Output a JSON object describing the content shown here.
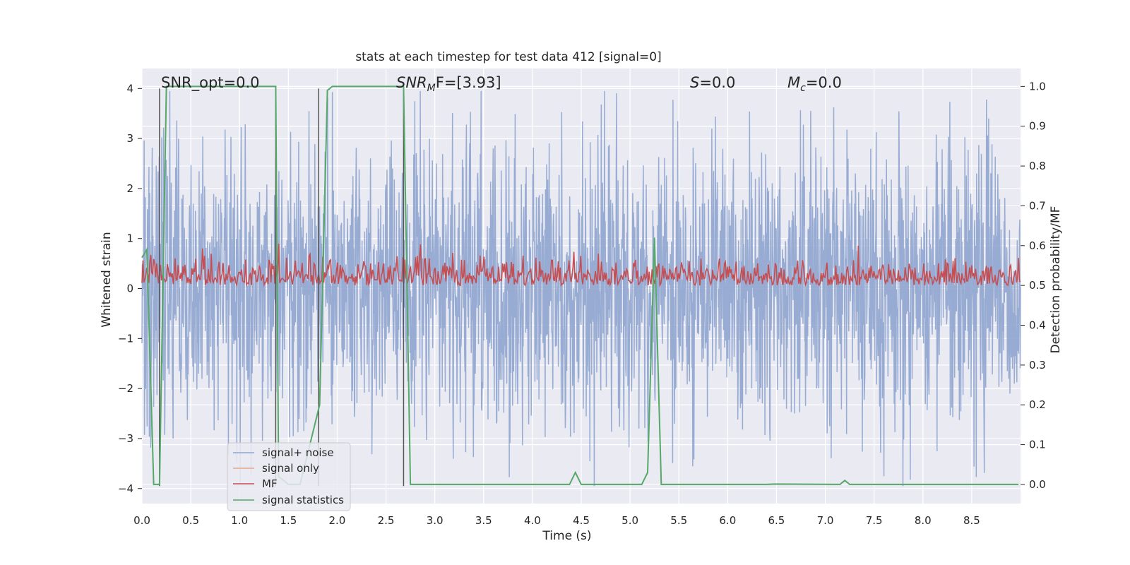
{
  "chart_data": {
    "type": "line",
    "title": "stats at each timestep for test data 412 [signal=0]",
    "xlabel": "Time (s)",
    "ylabel": "Whitened strain",
    "ylabel_right": "Detection probability/MF",
    "xlim": [
      0,
      9.0
    ],
    "ylim": [
      -4.3,
      4.4
    ],
    "ylim_right": [
      -0.048,
      1.045
    ],
    "x_ticks": [
      0.0,
      0.5,
      1.0,
      1.5,
      2.0,
      2.5,
      3.0,
      3.5,
      4.0,
      4.5,
      5.0,
      5.5,
      6.0,
      6.5,
      7.0,
      7.5,
      8.0,
      8.5
    ],
    "x_tick_labels": [
      "0.0",
      "0.5",
      "1.0",
      "1.5",
      "2.0",
      "2.5",
      "3.0",
      "3.5",
      "4.0",
      "4.5",
      "5.0",
      "5.5",
      "6.0",
      "6.5",
      "7.0",
      "7.5",
      "8.0",
      "8.5"
    ],
    "y_ticks": [
      4,
      3,
      2,
      1,
      0,
      -1,
      -2,
      -3,
      -4
    ],
    "y_tick_labels": [
      "4",
      "3",
      "2",
      "1",
      "0",
      "−1",
      "−2",
      "−3",
      "−4"
    ],
    "y_right_ticks": [
      1.0,
      0.9,
      0.8,
      0.7,
      0.6,
      0.5,
      0.4,
      0.3,
      0.2,
      0.1,
      0.0
    ],
    "y_right_tick_labels": [
      "1.0",
      "0.9",
      "0.8",
      "0.7",
      "0.6",
      "0.5",
      "0.4",
      "0.3",
      "0.2",
      "0.1",
      "0.0"
    ],
    "grid": true,
    "legend_position": "lower-left",
    "annotations": {
      "snr_opt": "SNR_opt=0.0",
      "snr_mf_base": "SNR",
      "snr_mf_sub": "M",
      "snr_mf_rest": "F=[3.93]",
      "s_base": "S",
      "s_rest": "=0.0",
      "mc_base": "M",
      "mc_sub": "c",
      "mc_rest": "=0.0"
    },
    "series": [
      {
        "name": "signal+ noise",
        "color": "#8fa5cf",
        "axis": "left",
        "description": "dense gaussian noise spanning roughly -4 to 4",
        "noise_std": 1.35
      },
      {
        "name": "signal only",
        "color": "#e8a58a",
        "axis": "left",
        "values": []
      },
      {
        "name": "MF",
        "color": "#c44e52",
        "axis": "right",
        "description": "matched filter output fluctuating between about 0.5 and 0.6"
      },
      {
        "name": "signal statistics",
        "color": "#55a868",
        "axis": "right",
        "x": [
          0.0,
          0.05,
          0.12,
          0.18,
          0.25,
          1.37,
          1.4,
          1.5,
          1.62,
          1.82,
          1.9,
          1.95,
          2.68,
          2.75,
          4.38,
          4.44,
          4.5,
          5.12,
          5.18,
          5.25,
          5.32,
          6.4,
          6.48,
          7.15,
          7.2,
          7.25,
          8.98
        ],
        "y": [
          0.57,
          0.59,
          0.0,
          0.0,
          1.0,
          1.0,
          0.02,
          0.0,
          0.0,
          0.2,
          0.99,
          1.0,
          1.0,
          0.0,
          0.0,
          0.03,
          0.0,
          0.0,
          0.03,
          0.62,
          0.0,
          0.0,
          0.001,
          0.0,
          0.01,
          0.0,
          0.0
        ]
      }
    ],
    "vertical_lines": [
      0.18,
      1.37,
      1.81,
      2.68
    ]
  }
}
